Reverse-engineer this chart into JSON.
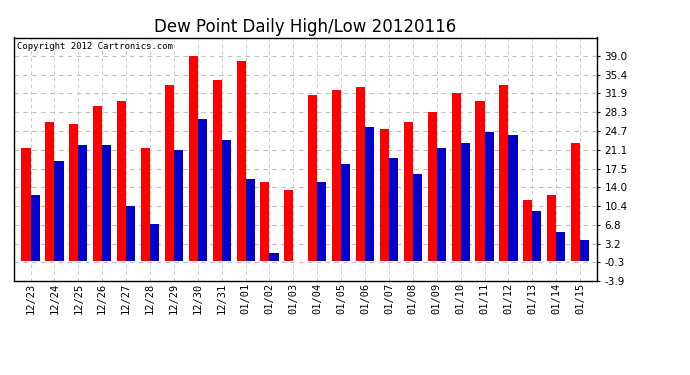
{
  "title": "Dew Point Daily High/Low 20120116",
  "copyright": "Copyright 2012 Cartronics.com",
  "dates": [
    "12/23",
    "12/24",
    "12/25",
    "12/26",
    "12/27",
    "12/28",
    "12/29",
    "12/30",
    "12/31",
    "01/01",
    "01/02",
    "01/03",
    "01/04",
    "01/05",
    "01/06",
    "01/07",
    "01/08",
    "01/09",
    "01/10",
    "01/11",
    "01/12",
    "01/13",
    "01/14",
    "01/15"
  ],
  "high": [
    21.5,
    26.5,
    26.0,
    29.5,
    30.5,
    21.5,
    33.5,
    39.0,
    34.5,
    38.0,
    15.0,
    13.5,
    31.5,
    32.5,
    33.0,
    25.0,
    26.5,
    28.3,
    32.0,
    30.5,
    33.5,
    11.5,
    12.5,
    22.5
  ],
  "low": [
    12.5,
    19.0,
    22.0,
    22.0,
    10.5,
    7.0,
    21.0,
    27.0,
    23.0,
    15.5,
    1.5,
    0.0,
    15.0,
    18.5,
    25.5,
    19.5,
    16.5,
    21.5,
    22.5,
    24.5,
    24.0,
    9.5,
    5.5,
    4.0
  ],
  "high_color": "#ff0000",
  "low_color": "#0000cc",
  "background_color": "#ffffff",
  "grid_color": "#c0c0c0",
  "ylim": [
    -3.9,
    42.5
  ],
  "yticks": [
    -3.9,
    -0.3,
    3.2,
    6.8,
    10.4,
    14.0,
    17.5,
    21.1,
    24.7,
    28.3,
    31.9,
    35.4,
    39.0
  ],
  "title_fontsize": 12,
  "tick_fontsize": 7.5,
  "copyright_fontsize": 6.5
}
